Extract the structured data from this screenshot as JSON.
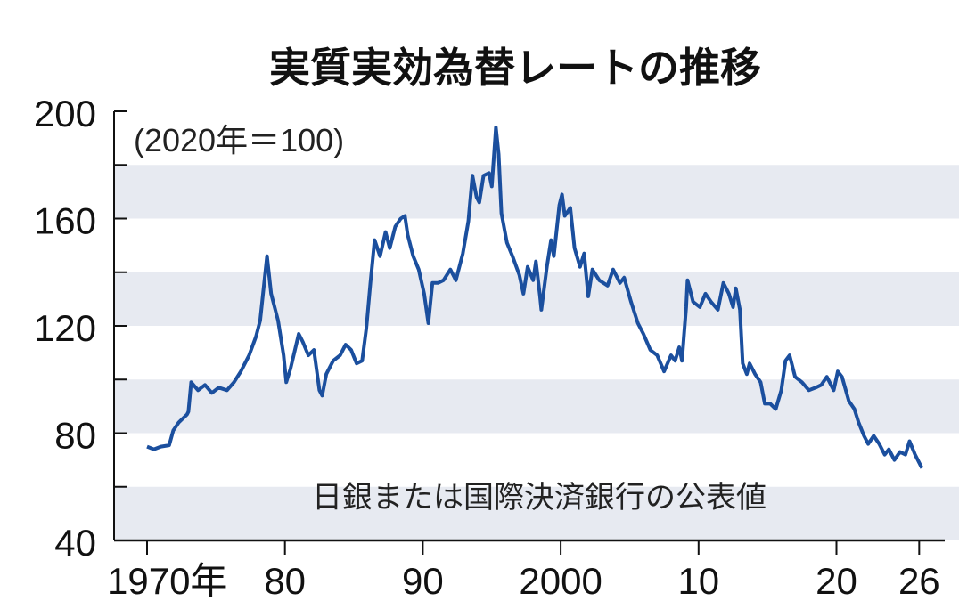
{
  "chart_data": {
    "type": "line",
    "title": "実質実効為替レートの推移",
    "unit_note": "(2020年＝100)",
    "source_note": "日銀または国際決済銀行の公表値",
    "ylim": [
      40,
      200
    ],
    "yticks": [
      200,
      160,
      120,
      80,
      40
    ],
    "xlim": [
      1968,
      2028
    ],
    "xticks": [
      {
        "value": 1970,
        "label": "1970年"
      },
      {
        "value": 1980,
        "label": "80"
      },
      {
        "value": 1990,
        "label": "90"
      },
      {
        "value": 2000,
        "label": "2000"
      },
      {
        "value": 2010,
        "label": "10"
      },
      {
        "value": 2020,
        "label": "20"
      },
      {
        "value": 2026,
        "label": "26"
      }
    ],
    "grid_bands": [
      [
        40,
        60
      ],
      [
        80,
        100
      ],
      [
        120,
        140
      ],
      [
        160,
        180
      ]
    ],
    "colors": {
      "line": "#1b4f9e",
      "band": "#e7eaf1",
      "axis": "#111111"
    },
    "x": [
      1970.0,
      1970.5,
      1971.0,
      1971.6,
      1971.9,
      1972.3,
      1972.9,
      1973.0,
      1973.2,
      1973.7,
      1974.2,
      1974.7,
      1975.2,
      1975.8,
      1976.3,
      1976.8,
      1977.4,
      1977.9,
      1978.2,
      1978.6,
      1978.7,
      1979.0,
      1979.5,
      1979.9,
      1980.1,
      1980.4,
      1981.0,
      1981.3,
      1981.7,
      1982.1,
      1982.5,
      1982.7,
      1983.0,
      1983.5,
      1984.0,
      1984.4,
      1984.8,
      1985.2,
      1985.6,
      1985.9,
      1986.2,
      1986.5,
      1986.9,
      1987.3,
      1987.6,
      1988.0,
      1988.4,
      1988.7,
      1988.9,
      1989.3,
      1989.7,
      1990.1,
      1990.4,
      1990.7,
      1991.1,
      1991.5,
      1992.0,
      1992.4,
      1992.9,
      1993.3,
      1993.6,
      1993.9,
      1994.1,
      1994.4,
      1994.8,
      1995.0,
      1995.3,
      1995.5,
      1995.7,
      1996.1,
      1996.5,
      1997.0,
      1997.3,
      1997.6,
      1998.0,
      1998.2,
      1998.5,
      1998.6,
      1999.0,
      1999.3,
      1999.5,
      1999.9,
      2000.1,
      2000.3,
      2000.7,
      2001.0,
      2001.4,
      2001.7,
      2002.0,
      2002.3,
      2002.8,
      2003.4,
      2003.8,
      2004.3,
      2004.6,
      2005.1,
      2005.6,
      2006.0,
      2006.5,
      2007.0,
      2007.5,
      2008.0,
      2008.3,
      2008.6,
      2008.8,
      2009.1,
      2009.2,
      2009.6,
      2010.1,
      2010.5,
      2010.9,
      2011.4,
      2011.8,
      2012.2,
      2012.5,
      2012.7,
      2013.0,
      2013.2,
      2013.5,
      2013.7,
      2014.1,
      2014.5,
      2014.8,
      2015.2,
      2015.6,
      2016.0,
      2016.3,
      2016.6,
      2017.0,
      2017.5,
      2018.0,
      2018.5,
      2018.9,
      2019.3,
      2019.8,
      2020.1,
      2020.4,
      2020.9,
      2021.3,
      2021.6,
      2022.0,
      2022.3,
      2022.7,
      2023.1,
      2023.5,
      2023.8,
      2024.2,
      2024.6,
      2025.0,
      2025.3,
      2025.7,
      2026.2
    ],
    "y": [
      75,
      74,
      75,
      75.5,
      81,
      84,
      87,
      88,
      99,
      96,
      98,
      95,
      97,
      96,
      99,
      103,
      109,
      116,
      122,
      141,
      146,
      132,
      122,
      109,
      99,
      104,
      117,
      114,
      109,
      111,
      96,
      94,
      102,
      107,
      109,
      113,
      111,
      106,
      107,
      119,
      136,
      152,
      146,
      155,
      149,
      157,
      160,
      161,
      154,
      146,
      141,
      132,
      121,
      136,
      136,
      137,
      141,
      137,
      147,
      159,
      176,
      168,
      166,
      176,
      177,
      172,
      194,
      184,
      162,
      151,
      146,
      139,
      132,
      142,
      137,
      144,
      131,
      126,
      142,
      152,
      146,
      165,
      169,
      161,
      164,
      149,
      142,
      147,
      131,
      141,
      137,
      135,
      141,
      136,
      138,
      129,
      121,
      117,
      111,
      109,
      103,
      109,
      107,
      112,
      107,
      127,
      137,
      129,
      127,
      132,
      129,
      126,
      136,
      132,
      127,
      134,
      126,
      106,
      102,
      106,
      102,
      99,
      91,
      91,
      89,
      96,
      107,
      109,
      101,
      99,
      96,
      97,
      98,
      101,
      96,
      103,
      101,
      92,
      89,
      84,
      79,
      76,
      79,
      76,
      72,
      74,
      70,
      73,
      72,
      77,
      72,
      67
    ]
  }
}
